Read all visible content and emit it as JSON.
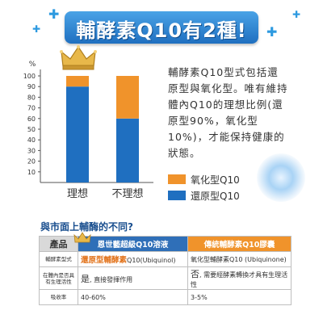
{
  "banner": {
    "title": "輔酵素Q10有2種!"
  },
  "description": "輔酵素Q10型式包括還原型與氧化型。唯有維持體內Q10的理想比例(還原型90%，氧化型10%)，才能保持健康的狀態。",
  "chart_data": {
    "type": "bar",
    "stacked": true,
    "categories": [
      "理想",
      "不理想"
    ],
    "series": [
      {
        "name": "還原型Q10",
        "values": [
          90,
          60
        ],
        "color": "#1f6fc0"
      },
      {
        "name": "氧化型Q10",
        "values": [
          10,
          40
        ],
        "color": "#f0932b"
      }
    ],
    "ylabel": "%",
    "ylim": [
      0,
      100
    ],
    "yticks": [
      10,
      20,
      30,
      40,
      50,
      60,
      70,
      80,
      90,
      100
    ],
    "grid": false,
    "legend_position": "right",
    "legend": [
      "氧化型Q10",
      "還原型Q10"
    ]
  },
  "comparison": {
    "title": "與市面上輔酶的不同?",
    "header": {
      "product": "產品",
      "a": "恩世藝超級Q10溶液",
      "b": "傳統輔酵素Q10膠囊"
    },
    "rows": [
      {
        "label": "輔酵素型式",
        "a_highlight": "還原型輔酵素",
        "a_rest": "Q10(Ubiquinol)",
        "b": "氧化型輔酵素Q10 (Ubiquinone)"
      },
      {
        "label": "在體內是否具有生理活性",
        "a_mark": "是",
        "a_rest": ", 直接發揮作用",
        "b_mark": "否",
        "b_rest": ", 需要經酵素轉換才具有生理活性"
      },
      {
        "label": "吸收率",
        "a": "40-60%",
        "b": "3-5%"
      }
    ]
  }
}
